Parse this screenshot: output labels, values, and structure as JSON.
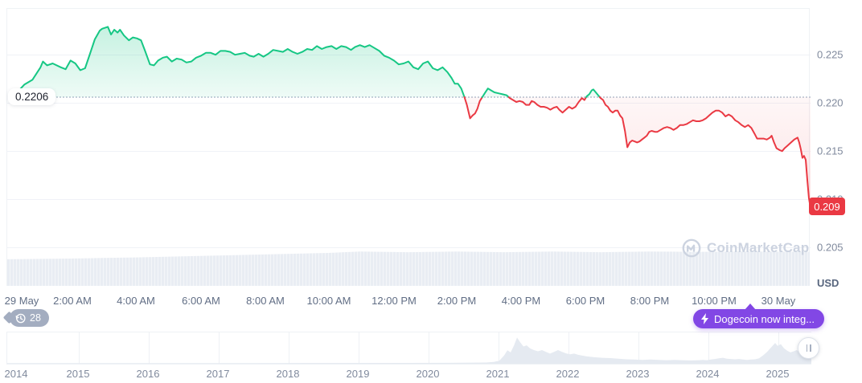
{
  "ui": {
    "watermark_text": "CoinMarketCap",
    "history_badge_count": "28",
    "promo_button_label": "Dogecoin now integ...",
    "unit_label": "USD"
  },
  "colors": {
    "up_line": "#16c784",
    "down_line": "#ea3943",
    "badge_bg": "#ea3943",
    "promo_bg": "#8247e5",
    "axis_text": "#808a9d",
    "minimap_fill": "#e5eaf1"
  },
  "chart_data": {
    "type": "line",
    "unit": "USD",
    "baseline_value": 0.2206,
    "baseline_label": "0.2206",
    "last_price_value": 0.2091,
    "last_price_label": "0.209",
    "y_ticks": [
      "0.225",
      "0.220",
      "0.215",
      "0.210",
      "0.205"
    ],
    "x_ticks": [
      "29 May",
      "2:00 AM",
      "4:00 AM",
      "6:00 AM",
      "8:00 AM",
      "10:00 AM",
      "12:00 PM",
      "2:00 PM",
      "4:00 PM",
      "6:00 PM",
      "8:00 PM",
      "10:00 PM",
      "30 May"
    ],
    "series": [
      {
        "name": "price",
        "points": [
          [
            0.02,
            0.221
          ],
          [
            0.03,
            0.2219
          ],
          [
            0.04,
            0.2224
          ],
          [
            0.05,
            0.2237
          ],
          [
            0.053,
            0.2243
          ],
          [
            0.058,
            0.2239
          ],
          [
            0.065,
            0.2241
          ],
          [
            0.075,
            0.2237
          ],
          [
            0.081,
            0.2235
          ],
          [
            0.087,
            0.2244
          ],
          [
            0.093,
            0.2241
          ],
          [
            0.099,
            0.2234
          ],
          [
            0.105,
            0.2236
          ],
          [
            0.111,
            0.2251
          ],
          [
            0.117,
            0.2266
          ],
          [
            0.123,
            0.2275
          ],
          [
            0.126,
            0.2277
          ],
          [
            0.133,
            0.2279
          ],
          [
            0.137,
            0.2271
          ],
          [
            0.141,
            0.2276
          ],
          [
            0.145,
            0.2273
          ],
          [
            0.148,
            0.2276
          ],
          [
            0.153,
            0.227
          ],
          [
            0.159,
            0.2265
          ],
          [
            0.164,
            0.2268
          ],
          [
            0.169,
            0.2267
          ],
          [
            0.174,
            0.2265
          ],
          [
            0.179,
            0.2254
          ],
          [
            0.185,
            0.224
          ],
          [
            0.19,
            0.2239
          ],
          [
            0.195,
            0.2244
          ],
          [
            0.201,
            0.2247
          ],
          [
            0.206,
            0.2248
          ],
          [
            0.212,
            0.2243
          ],
          [
            0.218,
            0.2246
          ],
          [
            0.224,
            0.2245
          ],
          [
            0.23,
            0.2242
          ],
          [
            0.236,
            0.2243
          ],
          [
            0.242,
            0.2247
          ],
          [
            0.248,
            0.2249
          ],
          [
            0.254,
            0.2252
          ],
          [
            0.26,
            0.2252
          ],
          [
            0.266,
            0.225
          ],
          [
            0.272,
            0.2254
          ],
          [
            0.278,
            0.2254
          ],
          [
            0.284,
            0.2253
          ],
          [
            0.29,
            0.225
          ],
          [
            0.296,
            0.2251
          ],
          [
            0.302,
            0.2252
          ],
          [
            0.308,
            0.2249
          ],
          [
            0.313,
            0.2248
          ],
          [
            0.319,
            0.2251
          ],
          [
            0.325,
            0.2248
          ],
          [
            0.331,
            0.2251
          ],
          [
            0.337,
            0.2255
          ],
          [
            0.343,
            0.2254
          ],
          [
            0.349,
            0.2253
          ],
          [
            0.355,
            0.2256
          ],
          [
            0.361,
            0.2253
          ],
          [
            0.367,
            0.2251
          ],
          [
            0.373,
            0.2253
          ],
          [
            0.379,
            0.2256
          ],
          [
            0.385,
            0.2255
          ],
          [
            0.391,
            0.2259
          ],
          [
            0.397,
            0.2256
          ],
          [
            0.403,
            0.2258
          ],
          [
            0.409,
            0.2259
          ],
          [
            0.415,
            0.2256
          ],
          [
            0.421,
            0.2259
          ],
          [
            0.427,
            0.2258
          ],
          [
            0.433,
            0.2255
          ],
          [
            0.438,
            0.2258
          ],
          [
            0.444,
            0.226
          ],
          [
            0.45,
            0.2258
          ],
          [
            0.456,
            0.226
          ],
          [
            0.462,
            0.2257
          ],
          [
            0.468,
            0.2254
          ],
          [
            0.474,
            0.2249
          ],
          [
            0.48,
            0.2247
          ],
          [
            0.486,
            0.2244
          ],
          [
            0.492,
            0.224
          ],
          [
            0.498,
            0.2241
          ],
          [
            0.504,
            0.2243
          ],
          [
            0.51,
            0.2237
          ],
          [
            0.516,
            0.2235
          ],
          [
            0.522,
            0.2241
          ],
          [
            0.528,
            0.2243
          ],
          [
            0.534,
            0.2236
          ],
          [
            0.54,
            0.2234
          ],
          [
            0.546,
            0.2237
          ],
          [
            0.552,
            0.2232
          ],
          [
            0.557,
            0.2226
          ],
          [
            0.561,
            0.222
          ],
          [
            0.565,
            0.222
          ],
          [
            0.569,
            0.2215
          ],
          [
            0.573,
            0.2206
          ],
          [
            0.576,
            0.2198
          ],
          [
            0.58,
            0.2184
          ],
          [
            0.583,
            0.2187
          ],
          [
            0.586,
            0.2189
          ],
          [
            0.589,
            0.2194
          ],
          [
            0.592,
            0.2202
          ],
          [
            0.595,
            0.2206
          ],
          [
            0.598,
            0.221
          ],
          [
            0.602,
            0.2215
          ],
          [
            0.606,
            0.2213
          ],
          [
            0.61,
            0.2211
          ],
          [
            0.615,
            0.221
          ],
          [
            0.62,
            0.2209
          ],
          [
            0.625,
            0.2208
          ],
          [
            0.629,
            0.2205
          ],
          [
            0.633,
            0.2203
          ],
          [
            0.637,
            0.2201
          ],
          [
            0.641,
            0.2202
          ],
          [
            0.645,
            0.2201
          ],
          [
            0.649,
            0.2198
          ],
          [
            0.653,
            0.2198
          ],
          [
            0.656,
            0.2202
          ],
          [
            0.659,
            0.2201
          ],
          [
            0.663,
            0.2198
          ],
          [
            0.667,
            0.2196
          ],
          [
            0.671,
            0.2196
          ],
          [
            0.675,
            0.2195
          ],
          [
            0.679,
            0.2193
          ],
          [
            0.683,
            0.2195
          ],
          [
            0.687,
            0.2196
          ],
          [
            0.69,
            0.2193
          ],
          [
            0.694,
            0.219
          ],
          [
            0.698,
            0.2193
          ],
          [
            0.702,
            0.2196
          ],
          [
            0.706,
            0.2194
          ],
          [
            0.71,
            0.2196
          ],
          [
            0.714,
            0.2201
          ],
          [
            0.718,
            0.2205
          ],
          [
            0.721,
            0.2203
          ],
          [
            0.724,
            0.2207
          ],
          [
            0.727,
            0.2209
          ],
          [
            0.73,
            0.2213
          ],
          [
            0.732,
            0.2214
          ],
          [
            0.735,
            0.2211
          ],
          [
            0.738,
            0.2208
          ],
          [
            0.741,
            0.2205
          ],
          [
            0.744,
            0.2203
          ],
          [
            0.747,
            0.2198
          ],
          [
            0.75,
            0.2196
          ],
          [
            0.753,
            0.2192
          ],
          [
            0.756,
            0.219
          ],
          [
            0.759,
            0.2192
          ],
          [
            0.762,
            0.2192
          ],
          [
            0.765,
            0.2187
          ],
          [
            0.768,
            0.2184
          ],
          [
            0.771,
            0.2171
          ],
          [
            0.774,
            0.2154
          ],
          [
            0.777,
            0.2159
          ],
          [
            0.78,
            0.2161
          ],
          [
            0.783,
            0.216
          ],
          [
            0.786,
            0.2159
          ],
          [
            0.789,
            0.216
          ],
          [
            0.792,
            0.2162
          ],
          [
            0.795,
            0.2164
          ],
          [
            0.798,
            0.2166
          ],
          [
            0.801,
            0.217
          ],
          [
            0.804,
            0.2171
          ],
          [
            0.808,
            0.217
          ],
          [
            0.811,
            0.217
          ],
          [
            0.815,
            0.2172
          ],
          [
            0.819,
            0.2174
          ],
          [
            0.823,
            0.2175
          ],
          [
            0.827,
            0.2174
          ],
          [
            0.831,
            0.2172
          ],
          [
            0.835,
            0.2174
          ],
          [
            0.839,
            0.2177
          ],
          [
            0.843,
            0.2177
          ],
          [
            0.847,
            0.2178
          ],
          [
            0.851,
            0.218
          ],
          [
            0.855,
            0.2182
          ],
          [
            0.859,
            0.2181
          ],
          [
            0.863,
            0.2181
          ],
          [
            0.867,
            0.2182
          ],
          [
            0.871,
            0.2184
          ],
          [
            0.875,
            0.2187
          ],
          [
            0.879,
            0.219
          ],
          [
            0.883,
            0.2192
          ],
          [
            0.887,
            0.2192
          ],
          [
            0.891,
            0.219
          ],
          [
            0.895,
            0.2186
          ],
          [
            0.899,
            0.2188
          ],
          [
            0.903,
            0.2186
          ],
          [
            0.907,
            0.2182
          ],
          [
            0.911,
            0.218
          ],
          [
            0.915,
            0.2177
          ],
          [
            0.919,
            0.2175
          ],
          [
            0.923,
            0.2177
          ],
          [
            0.927,
            0.2174
          ],
          [
            0.931,
            0.2168
          ],
          [
            0.934,
            0.2163
          ],
          [
            0.938,
            0.2163
          ],
          [
            0.942,
            0.2163
          ],
          [
            0.946,
            0.2162
          ],
          [
            0.95,
            0.2164
          ],
          [
            0.952,
            0.2166
          ],
          [
            0.955,
            0.2159
          ],
          [
            0.958,
            0.2153
          ],
          [
            0.962,
            0.2151
          ],
          [
            0.965,
            0.215
          ],
          [
            0.968,
            0.2153
          ],
          [
            0.972,
            0.2156
          ],
          [
            0.976,
            0.2159
          ],
          [
            0.98,
            0.2162
          ],
          [
            0.984,
            0.2164
          ],
          [
            0.986,
            0.2159
          ],
          [
            0.988,
            0.2152
          ],
          [
            0.99,
            0.2143
          ],
          [
            0.992,
            0.2145
          ],
          [
            0.994,
            0.2141
          ],
          [
            0.996,
            0.212
          ],
          [
            0.998,
            0.2101
          ],
          [
            1.0,
            0.2091
          ]
        ]
      }
    ],
    "volume_profile": [
      [
        0,
        0.72
      ],
      [
        0.08,
        0.74
      ],
      [
        0.16,
        0.77
      ],
      [
        0.24,
        0.81
      ],
      [
        0.32,
        0.85
      ],
      [
        0.4,
        0.89
      ],
      [
        0.44,
        0.93
      ],
      [
        0.5,
        0.91
      ],
      [
        0.56,
        0.93
      ],
      [
        0.62,
        0.91
      ],
      [
        0.68,
        0.93
      ],
      [
        0.74,
        0.91
      ],
      [
        0.8,
        0.93
      ],
      [
        0.86,
        0.92
      ],
      [
        0.92,
        0.93
      ],
      [
        1,
        0.92
      ]
    ],
    "minimap": {
      "type": "area",
      "years": [
        "2014",
        "2015",
        "2016",
        "2017",
        "2018",
        "2019",
        "2020",
        "2021",
        "2022",
        "2023",
        "2024",
        "2025"
      ],
      "points": [
        [
          0,
          0.02
        ],
        [
          0.3,
          0.02
        ],
        [
          0.55,
          0.03
        ],
        [
          0.595,
          0.04
        ],
        [
          0.605,
          0.06
        ],
        [
          0.612,
          0.1
        ],
        [
          0.618,
          0.28
        ],
        [
          0.622,
          0.45
        ],
        [
          0.626,
          0.38
        ],
        [
          0.63,
          0.6
        ],
        [
          0.634,
          0.88
        ],
        [
          0.638,
          0.72
        ],
        [
          0.642,
          0.58
        ],
        [
          0.646,
          0.62
        ],
        [
          0.65,
          0.52
        ],
        [
          0.655,
          0.46
        ],
        [
          0.66,
          0.42
        ],
        [
          0.665,
          0.46
        ],
        [
          0.67,
          0.4
        ],
        [
          0.675,
          0.34
        ],
        [
          0.68,
          0.4
        ],
        [
          0.685,
          0.46
        ],
        [
          0.69,
          0.4
        ],
        [
          0.695,
          0.35
        ],
        [
          0.7,
          0.32
        ],
        [
          0.705,
          0.34
        ],
        [
          0.71,
          0.3
        ],
        [
          0.72,
          0.25
        ],
        [
          0.73,
          0.22
        ],
        [
          0.74,
          0.2
        ],
        [
          0.75,
          0.19
        ],
        [
          0.76,
          0.17
        ],
        [
          0.77,
          0.15
        ],
        [
          0.78,
          0.14
        ],
        [
          0.79,
          0.13
        ],
        [
          0.8,
          0.14
        ],
        [
          0.81,
          0.13
        ],
        [
          0.82,
          0.12
        ],
        [
          0.83,
          0.13
        ],
        [
          0.84,
          0.12
        ],
        [
          0.85,
          0.11
        ],
        [
          0.86,
          0.12
        ],
        [
          0.865,
          0.13
        ],
        [
          0.87,
          0.12
        ],
        [
          0.875,
          0.14
        ],
        [
          0.88,
          0.16
        ],
        [
          0.885,
          0.18
        ],
        [
          0.89,
          0.2
        ],
        [
          0.895,
          0.17
        ],
        [
          0.9,
          0.16
        ],
        [
          0.905,
          0.15
        ],
        [
          0.91,
          0.16
        ],
        [
          0.915,
          0.14
        ],
        [
          0.92,
          0.13
        ],
        [
          0.925,
          0.14
        ],
        [
          0.93,
          0.15
        ],
        [
          0.935,
          0.18
        ],
        [
          0.94,
          0.28
        ],
        [
          0.945,
          0.4
        ],
        [
          0.95,
          0.55
        ],
        [
          0.955,
          0.7
        ],
        [
          0.958,
          0.6
        ],
        [
          0.962,
          0.66
        ],
        [
          0.966,
          0.52
        ],
        [
          0.97,
          0.44
        ],
        [
          0.974,
          0.38
        ],
        [
          0.978,
          0.42
        ],
        [
          0.982,
          0.46
        ],
        [
          0.986,
          0.36
        ],
        [
          0.99,
          0.3
        ],
        [
          0.995,
          0.26
        ],
        [
          1,
          0.22
        ]
      ]
    }
  }
}
